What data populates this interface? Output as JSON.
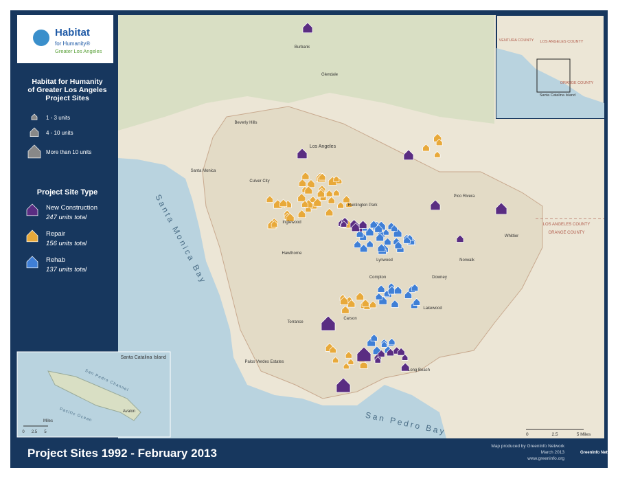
{
  "logo": {
    "name": "Habitat",
    "sub": "for Humanity®",
    "region": "Greater Los Angeles"
  },
  "legend": {
    "title": "Habitat for Humanity of Greater Los Angeles Project Sites",
    "sizes": [
      "1 - 3 units",
      "4 - 10 units",
      "More than 10 units"
    ],
    "type_title": "Project Site Type",
    "types": [
      {
        "name": "New Construction",
        "total": "247 units total"
      },
      {
        "name": "Repair",
        "total": "156 units total"
      },
      {
        "name": "Rehab",
        "total": "137 units total"
      }
    ]
  },
  "map_labels": [
    "Santa Monica Bay",
    "San Pedro Bay",
    "LOS ANGELES COUNTY",
    "ORANGE COUNTY",
    "Burbank",
    "Los Angeles",
    "Inglewood",
    "Compton",
    "Long Beach",
    "Torrance",
    "Downey",
    "Whittier",
    "Hawthorne",
    "Lynwood",
    "Carson",
    "Culver City",
    "Huntington Park",
    "Pico Rivera",
    "Norwalk",
    "Lakewood",
    "Palos Verdes Estates",
    "Santa Monica",
    "Beverly Hills",
    "Glendale"
  ],
  "scale": [
    "0",
    "2.5",
    "5 Miles"
  ],
  "catalina": {
    "title": "Santa Catalina Island",
    "labels": [
      "San Pedro Channel",
      "Pacific Ocean",
      "Avalon"
    ],
    "scale": [
      "0",
      "2.5",
      "5",
      "Miles"
    ]
  },
  "locator": {
    "labels": [
      "VENTURA COUNTY",
      "LOS ANGELES COUNTY",
      "ORANGE COUNTY",
      "Santa Catalina Island"
    ]
  },
  "footer": {
    "title": "Project Sites 1992 - February 2013",
    "credit": [
      "Map produced by GreenInfo Network",
      "March 2013",
      "www.greeninfo.org"
    ],
    "logo": "GreenInfo Network"
  }
}
